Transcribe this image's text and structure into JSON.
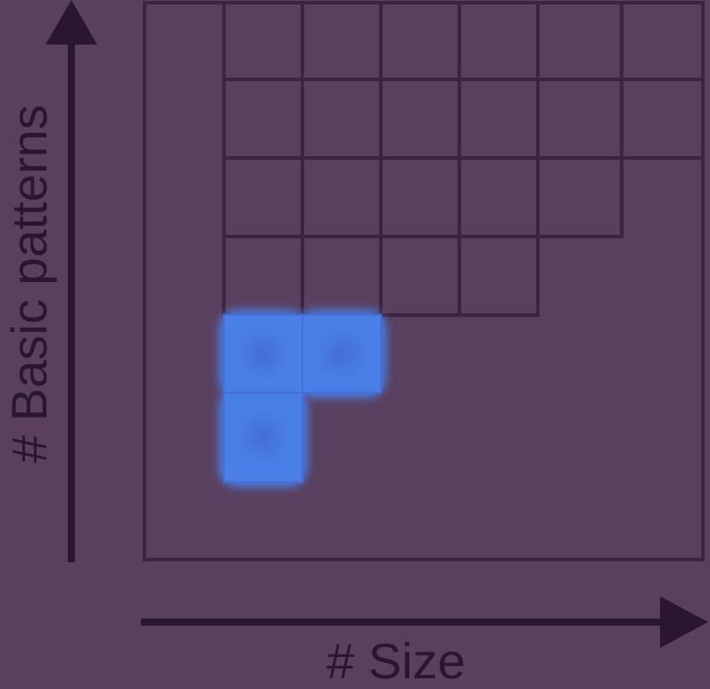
{
  "diagram": {
    "colors": {
      "background": "#5a405f",
      "line": "#3b2540",
      "axis": "#2a1533",
      "highlight": "#4a7fe8",
      "highlight_center": "#4a6fd6"
    },
    "y_axis_label": "# Basic patterns",
    "x_axis_label": "# Size",
    "grid": {
      "row_lengths": [
        7,
        6,
        5,
        4,
        0,
        0,
        0
      ]
    },
    "highlighted_cells": [
      {
        "row": 4,
        "col": 1
      },
      {
        "row": 4,
        "col": 2
      },
      {
        "row": 5,
        "col": 1
      }
    ]
  }
}
